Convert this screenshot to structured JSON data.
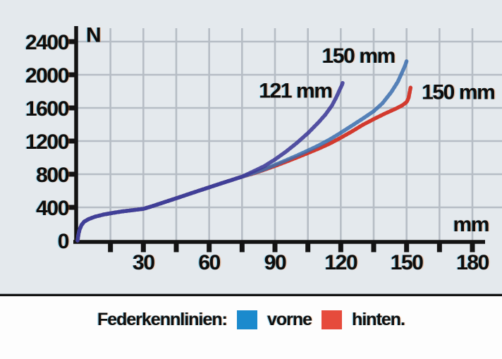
{
  "legend": {
    "title": "Federkennlinien:",
    "items": [
      {
        "label": "vorne",
        "color": "#1b8acd"
      },
      {
        "label": "hinten.",
        "color": "#e64b3c"
      }
    ]
  },
  "chart_data": {
    "type": "line",
    "title": "",
    "xlabel": "mm",
    "ylabel": "N",
    "xlim": [
      0,
      193.5
    ],
    "ylim": [
      0,
      2590
    ],
    "grid": true,
    "background": "#e4e9ed",
    "grid_color": "#b6bdc5",
    "axis_color": "#131313",
    "x_tick_labels": [
      30,
      60,
      90,
      120,
      150,
      180
    ],
    "x_minor_tick_step_mm": 15,
    "y_tick_labels": [
      2400,
      2000,
      1600,
      1200,
      800,
      400,
      0
    ],
    "y_grid_step_N": 400,
    "legend_hint": {
      "position": "bottom",
      "entries": [
        "vorne",
        "hinten."
      ]
    },
    "series": [
      {
        "name": "hinten-150mm",
        "label": "150 mm",
        "color": "#d23a2e",
        "opacity": 1.0,
        "points": [
          [
            0,
            0
          ],
          [
            0.4,
            70
          ],
          [
            0.9,
            132
          ],
          [
            1.8,
            186
          ],
          [
            3,
            226
          ],
          [
            5,
            258
          ],
          [
            8,
            288
          ],
          [
            12,
            314
          ],
          [
            16,
            333
          ],
          [
            20,
            350
          ],
          [
            25,
            366
          ],
          [
            30,
            382
          ],
          [
            35,
            422
          ],
          [
            40,
            466
          ],
          [
            45,
            510
          ],
          [
            50,
            554
          ],
          [
            55,
            598
          ],
          [
            60,
            642
          ],
          [
            65,
            685
          ],
          [
            70,
            728
          ],
          [
            75,
            770
          ],
          [
            80,
            808
          ],
          [
            85,
            852
          ],
          [
            90,
            900
          ],
          [
            95,
            950
          ],
          [
            100,
            1002
          ],
          [
            105,
            1055
          ],
          [
            110,
            1110
          ],
          [
            115,
            1170
          ],
          [
            120,
            1240
          ],
          [
            125,
            1315
          ],
          [
            130,
            1395
          ],
          [
            135,
            1465
          ],
          [
            140,
            1530
          ],
          [
            145,
            1590
          ],
          [
            148,
            1630
          ],
          [
            150,
            1670
          ],
          [
            150.9,
            1720
          ],
          [
            151.5,
            1800
          ],
          [
            151.8,
            1845
          ]
        ]
      },
      {
        "name": "vorne-150mm",
        "label": "150 mm",
        "color": "#3c6fae",
        "opacity": 0.85,
        "points": [
          [
            0,
            0
          ],
          [
            0.4,
            70
          ],
          [
            0.9,
            132
          ],
          [
            1.8,
            186
          ],
          [
            3,
            226
          ],
          [
            5,
            258
          ],
          [
            8,
            288
          ],
          [
            12,
            314
          ],
          [
            16,
            333
          ],
          [
            20,
            350
          ],
          [
            25,
            366
          ],
          [
            30,
            382
          ],
          [
            35,
            422
          ],
          [
            40,
            466
          ],
          [
            45,
            510
          ],
          [
            50,
            554
          ],
          [
            55,
            598
          ],
          [
            60,
            642
          ],
          [
            65,
            685
          ],
          [
            70,
            728
          ],
          [
            75,
            770
          ],
          [
            80,
            812
          ],
          [
            85,
            858
          ],
          [
            90,
            912
          ],
          [
            95,
            968
          ],
          [
            100,
            1025
          ],
          [
            105,
            1085
          ],
          [
            110,
            1148
          ],
          [
            115,
            1220
          ],
          [
            120,
            1300
          ],
          [
            125,
            1385
          ],
          [
            130,
            1470
          ],
          [
            135,
            1560
          ],
          [
            139,
            1655
          ],
          [
            143,
            1790
          ],
          [
            146,
            1915
          ],
          [
            148,
            2030
          ],
          [
            149.3,
            2110
          ],
          [
            150,
            2165
          ]
        ]
      },
      {
        "name": "vorne-121mm",
        "label": "121 mm",
        "color": "#3e3a97",
        "opacity": 0.88,
        "points": [
          [
            0,
            0
          ],
          [
            0.4,
            70
          ],
          [
            0.9,
            132
          ],
          [
            1.8,
            186
          ],
          [
            3,
            226
          ],
          [
            5,
            258
          ],
          [
            8,
            288
          ],
          [
            12,
            314
          ],
          [
            16,
            333
          ],
          [
            20,
            350
          ],
          [
            25,
            366
          ],
          [
            30,
            382
          ],
          [
            35,
            422
          ],
          [
            40,
            466
          ],
          [
            45,
            510
          ],
          [
            50,
            554
          ],
          [
            55,
            598
          ],
          [
            60,
            642
          ],
          [
            65,
            685
          ],
          [
            70,
            728
          ],
          [
            75,
            770
          ],
          [
            80,
            832
          ],
          [
            85,
            895
          ],
          [
            90,
            978
          ],
          [
            95,
            1072
          ],
          [
            100,
            1178
          ],
          [
            105,
            1295
          ],
          [
            110,
            1430
          ],
          [
            113,
            1520
          ],
          [
            116,
            1630
          ],
          [
            118,
            1730
          ],
          [
            119.7,
            1830
          ],
          [
            120.6,
            1880
          ],
          [
            121,
            1915
          ]
        ]
      }
    ],
    "annotations": [
      {
        "text": "150 mm",
        "mm": 128,
        "N": 2240,
        "series": "vorne-150mm"
      },
      {
        "text": "121 mm",
        "mm": 99.3,
        "N": 1815,
        "series": "vorne-121mm"
      },
      {
        "text": "150 mm",
        "mm": 173.5,
        "N": 1800,
        "series": "hinten-150mm"
      }
    ],
    "axis_unit_labels": [
      {
        "text": "N",
        "mm": 7.1,
        "N": 2490
      },
      {
        "text": "mm",
        "mm": 179.3,
        "N": 205
      }
    ]
  }
}
